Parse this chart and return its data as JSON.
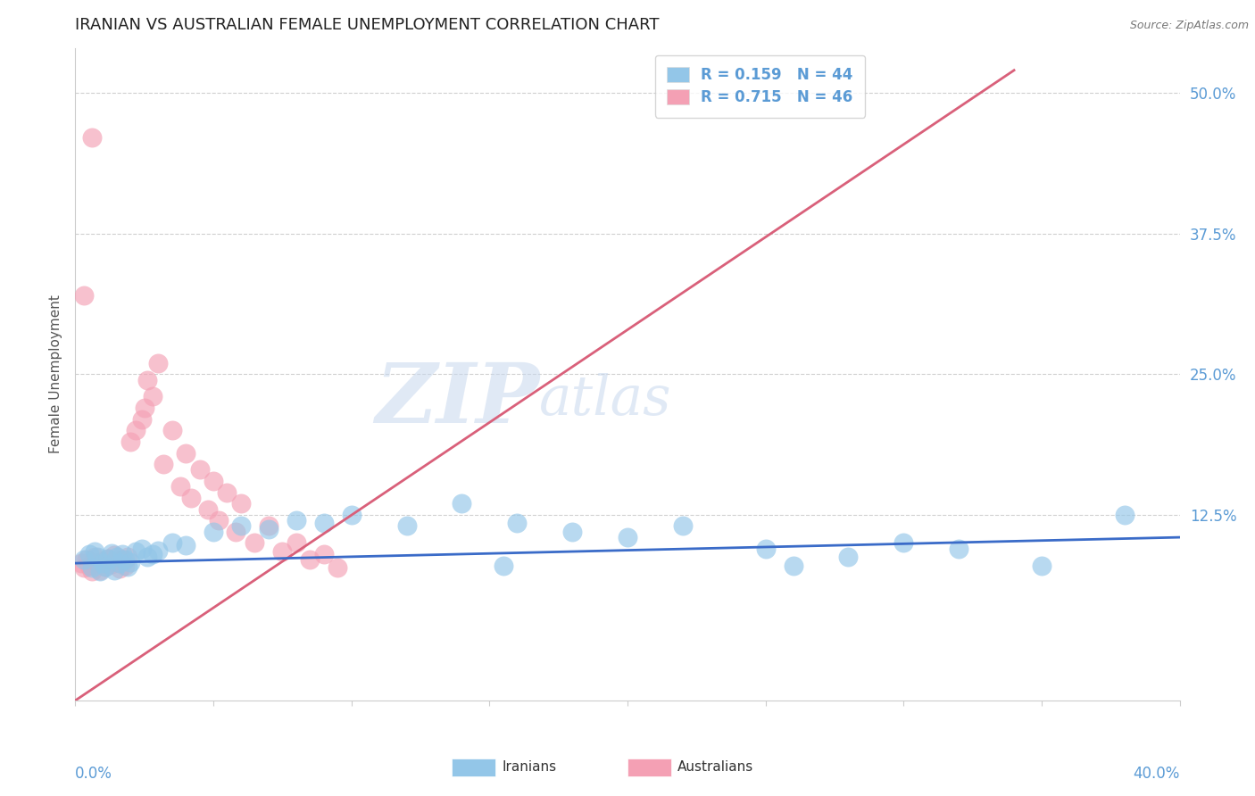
{
  "title": "IRANIAN VS AUSTRALIAN FEMALE UNEMPLOYMENT CORRELATION CHART",
  "source_text": "Source: ZipAtlas.com",
  "ylabel": "Female Unemployment",
  "yticks": [
    0.0,
    0.125,
    0.25,
    0.375,
    0.5
  ],
  "ytick_labels": [
    "",
    "12.5%",
    "25.0%",
    "37.5%",
    "50.0%"
  ],
  "xlim": [
    0.0,
    0.4
  ],
  "ylim": [
    -0.04,
    0.54
  ],
  "watermark_zip": "ZIP",
  "watermark_atlas": "atlas",
  "title_color": "#222222",
  "title_fontsize": 13,
  "axis_color": "#5b9bd5",
  "background_color": "#ffffff",
  "grid_color": "#d0d0d0",
  "blue_scatter_color": "#93c6e8",
  "pink_scatter_color": "#f4a0b4",
  "blue_line_color": "#3a6bc8",
  "pink_line_color": "#d9607a",
  "iranians_x": [
    0.003,
    0.005,
    0.006,
    0.007,
    0.008,
    0.009,
    0.01,
    0.011,
    0.012,
    0.013,
    0.014,
    0.015,
    0.016,
    0.017,
    0.018,
    0.019,
    0.02,
    0.022,
    0.024,
    0.026,
    0.028,
    0.03,
    0.035,
    0.04,
    0.05,
    0.06,
    0.07,
    0.08,
    0.09,
    0.1,
    0.12,
    0.14,
    0.16,
    0.18,
    0.2,
    0.22,
    0.25,
    0.28,
    0.3,
    0.32,
    0.35,
    0.38,
    0.155,
    0.26
  ],
  "iranians_y": [
    0.085,
    0.09,
    0.078,
    0.092,
    0.088,
    0.075,
    0.082,
    0.079,
    0.086,
    0.091,
    0.076,
    0.088,
    0.082,
    0.09,
    0.085,
    0.079,
    0.083,
    0.092,
    0.095,
    0.088,
    0.09,
    0.093,
    0.1,
    0.098,
    0.11,
    0.115,
    0.112,
    0.12,
    0.118,
    0.125,
    0.115,
    0.135,
    0.118,
    0.11,
    0.105,
    0.115,
    0.095,
    0.088,
    0.1,
    0.095,
    0.08,
    0.125,
    0.08,
    0.08
  ],
  "australians_x": [
    0.002,
    0.003,
    0.004,
    0.005,
    0.006,
    0.007,
    0.008,
    0.009,
    0.01,
    0.011,
    0.012,
    0.013,
    0.014,
    0.015,
    0.016,
    0.017,
    0.018,
    0.019,
    0.02,
    0.022,
    0.024,
    0.026,
    0.028,
    0.03,
    0.035,
    0.04,
    0.045,
    0.05,
    0.055,
    0.06,
    0.07,
    0.08,
    0.09,
    0.025,
    0.032,
    0.038,
    0.042,
    0.048,
    0.052,
    0.058,
    0.065,
    0.075,
    0.085,
    0.095,
    0.003,
    0.006
  ],
  "australians_y": [
    0.082,
    0.078,
    0.085,
    0.08,
    0.075,
    0.088,
    0.082,
    0.076,
    0.084,
    0.079,
    0.086,
    0.081,
    0.089,
    0.083,
    0.077,
    0.085,
    0.08,
    0.088,
    0.19,
    0.2,
    0.21,
    0.245,
    0.23,
    0.26,
    0.2,
    0.18,
    0.165,
    0.155,
    0.145,
    0.135,
    0.115,
    0.1,
    0.09,
    0.22,
    0.17,
    0.15,
    0.14,
    0.13,
    0.12,
    0.11,
    0.1,
    0.092,
    0.085,
    0.078,
    0.32,
    0.46
  ],
  "pink_line_x": [
    0.0,
    0.34
  ],
  "pink_line_y": [
    -0.04,
    0.52
  ],
  "blue_line_x": [
    0.0,
    0.4
  ],
  "blue_line_y": [
    0.082,
    0.105
  ]
}
